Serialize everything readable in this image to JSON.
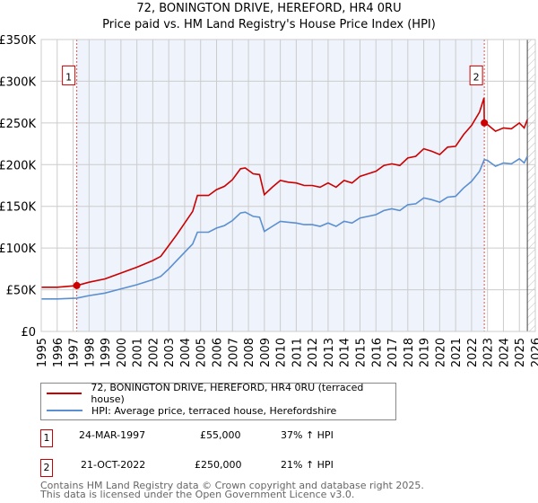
{
  "title": "72, BONINGTON DRIVE, HEREFORD, HR4 0RU",
  "subtitle": "Price paid vs. HM Land Registry's House Price Index (HPI)",
  "chart_data": {
    "type": "line",
    "title": "72, BONINGTON DRIVE, HEREFORD, HR4 0RU",
    "subtitle": "Price paid vs. HM Land Registry's House Price Index (HPI)",
    "xlim": [
      1995,
      2026
    ],
    "ylim": [
      0,
      350000
    ],
    "y_ticks": [
      0,
      50000,
      100000,
      150000,
      200000,
      250000,
      300000,
      350000
    ],
    "y_tick_labels": [
      "£0",
      "£50K",
      "£100K",
      "£150K",
      "£200K",
      "£250K",
      "£300K",
      "£350K"
    ],
    "x_tick_labels": [
      "1995",
      "1996",
      "1997",
      "1998",
      "1999",
      "2000",
      "2001",
      "2002",
      "2003",
      "2004",
      "2005",
      "2006",
      "2007",
      "2008",
      "2009",
      "2010",
      "2011",
      "2012",
      "2013",
      "2014",
      "2015",
      "2016",
      "2017",
      "2018",
      "2019",
      "2020",
      "2021",
      "2022",
      "2023",
      "2024",
      "2025",
      "2026"
    ],
    "grid": true,
    "colors": {
      "property": "#cc0000",
      "hpi": "#5b8fd0",
      "shade": "#eef3fc"
    },
    "series": [
      {
        "name": "72, BONINGTON DRIVE, HEREFORD, HR4 0RU (terraced house)",
        "x": [
          1995,
          1996,
          1997.23,
          1998,
          1999,
          2000,
          2001,
          2002,
          2002.5,
          2003,
          2003.5,
          2004,
          2004.5,
          2004.8,
          2005.5,
          2006,
          2006.5,
          2007,
          2007.5,
          2007.8,
          2008.3,
          2008.7,
          2009,
          2009.5,
          2010,
          2010.5,
          2011,
          2011.5,
          2012,
          2012.5,
          2013,
          2013.5,
          2014,
          2014.5,
          2015,
          2015.5,
          2016,
          2016.5,
          2017,
          2017.5,
          2018,
          2018.5,
          2019,
          2019.5,
          2020,
          2020.5,
          2021,
          2021.5,
          2022,
          2022.5,
          2022.78,
          2022.8,
          2023,
          2023.5,
          2024,
          2024.5,
          2025,
          2025.3,
          2025.5
        ],
        "values": [
          53000,
          53000,
          55000,
          59000,
          63000,
          70000,
          77000,
          85000,
          90000,
          103000,
          116000,
          130000,
          144000,
          163000,
          163000,
          170000,
          174000,
          182000,
          195000,
          196000,
          189000,
          188000,
          164000,
          173000,
          181000,
          179000,
          178000,
          175000,
          175000,
          173000,
          178000,
          173000,
          181000,
          178000,
          186000,
          189000,
          192000,
          199000,
          201000,
          199000,
          208000,
          210000,
          219000,
          216000,
          212000,
          221000,
          222000,
          236000,
          247000,
          263000,
          280000,
          250000,
          248000,
          240000,
          244000,
          243000,
          250000,
          244000,
          254000
        ]
      },
      {
        "name": "HPI: Average price, terraced house, Herefordshire",
        "x": [
          1995,
          1996,
          1997.23,
          1998,
          1999,
          2000,
          2001,
          2002,
          2002.5,
          2003,
          2003.5,
          2004,
          2004.5,
          2004.8,
          2005.5,
          2006,
          2006.5,
          2007,
          2007.5,
          2007.8,
          2008.3,
          2008.7,
          2009,
          2009.5,
          2010,
          2010.5,
          2011,
          2011.5,
          2012,
          2012.5,
          2013,
          2013.5,
          2014,
          2014.5,
          2015,
          2015.5,
          2016,
          2016.5,
          2017,
          2017.5,
          2018,
          2018.5,
          2019,
          2019.5,
          2020,
          2020.5,
          2021,
          2021.5,
          2022,
          2022.5,
          2022.8,
          2023,
          2023.5,
          2024,
          2024.5,
          2025,
          2025.3,
          2025.5
        ],
        "values": [
          39000,
          39000,
          40000,
          43000,
          46000,
          51000,
          56000,
          62000,
          66000,
          75000,
          85000,
          95000,
          105000,
          119000,
          119000,
          124000,
          127000,
          133000,
          142000,
          143000,
          138000,
          137000,
          120000,
          126000,
          132000,
          131000,
          130000,
          128000,
          128000,
          126000,
          130000,
          126000,
          132000,
          130000,
          136000,
          138000,
          140000,
          145000,
          147000,
          145000,
          152000,
          153000,
          160000,
          158000,
          155000,
          161000,
          162000,
          172000,
          180000,
          192000,
          206000,
          205000,
          198000,
          202000,
          201000,
          207000,
          202000,
          210000
        ]
      }
    ],
    "sales": [
      {
        "label": "1",
        "x": 1997.23,
        "value": 55000
      },
      {
        "label": "2",
        "x": 2022.8,
        "value": 250000
      }
    ],
    "shaded_range": [
      1997.23,
      2022.8
    ],
    "hatched_from": 2025.5,
    "legend_position": "bottom"
  },
  "legend": {
    "property": "72, BONINGTON DRIVE, HEREFORD, HR4 0RU (terraced house)",
    "hpi": "HPI: Average price, terraced house, Herefordshire"
  },
  "transactions": [
    {
      "num": "1",
      "date": "24-MAR-1997",
      "price": "£55,000",
      "hpi": "37% ↑ HPI"
    },
    {
      "num": "2",
      "date": "21-OCT-2022",
      "price": "£250,000",
      "hpi": "21% ↑ HPI"
    }
  ],
  "footer": {
    "line1": "Contains HM Land Registry data © Crown copyright and database right 2025.",
    "line2": "This data is licensed under the Open Government Licence v3.0."
  }
}
